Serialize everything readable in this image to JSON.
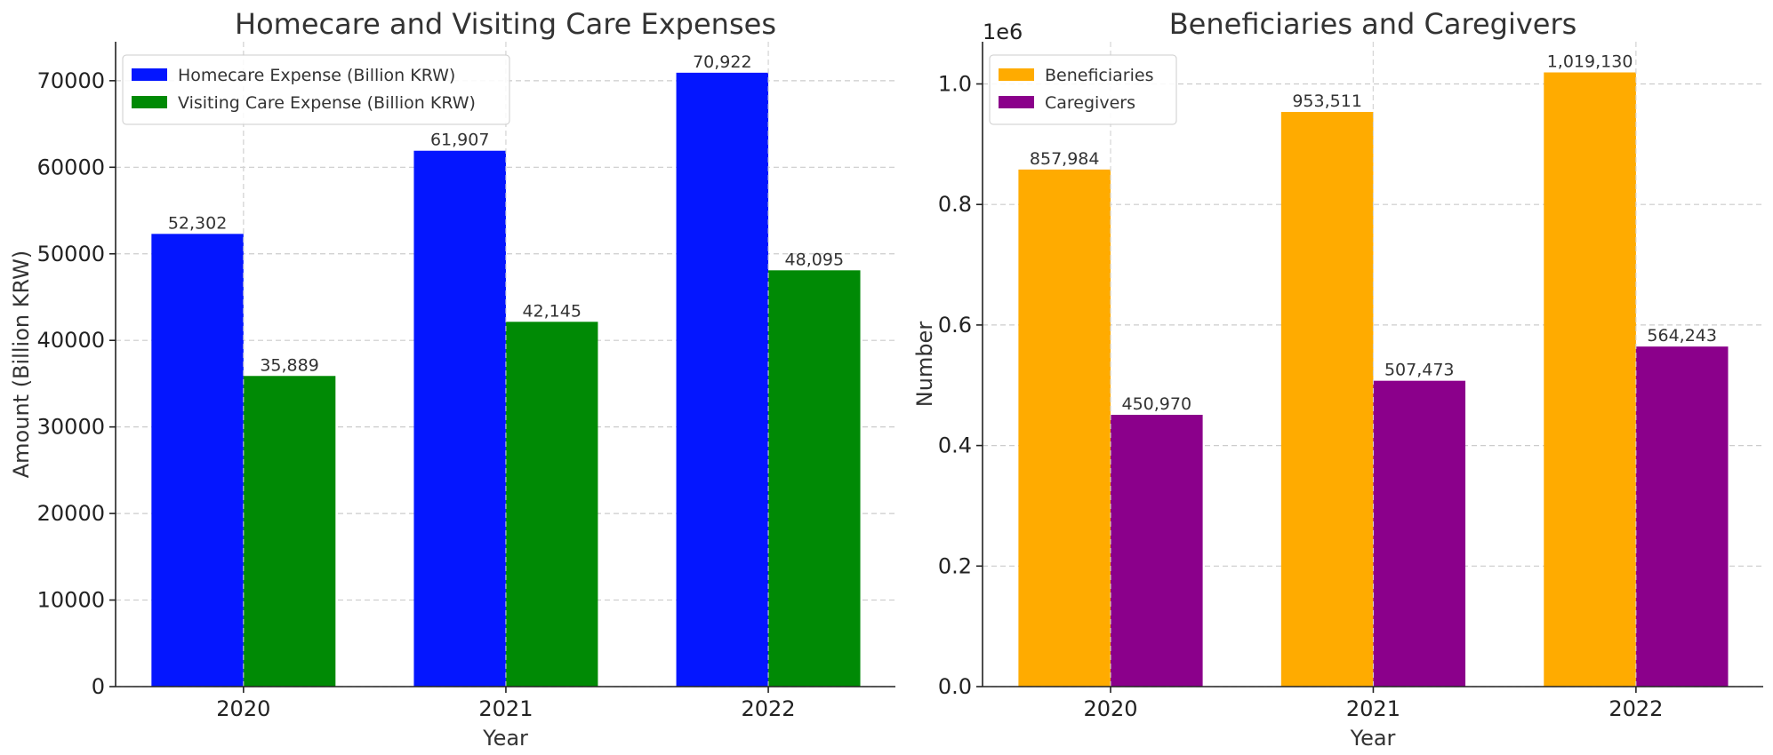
{
  "chart_data": [
    {
      "type": "bar",
      "title": "Homecare and Visiting Care Expenses",
      "xlabel": "Year",
      "ylabel": "Amount (Billion KRW)",
      "categories": [
        "2020",
        "2021",
        "2022"
      ],
      "series": [
        {
          "name": "Homecare Expense (Billion KRW)",
          "color": "#0416ff",
          "values": [
            52302,
            61907,
            70922
          ],
          "labels": [
            "52,302",
            "61,907",
            "70,922"
          ]
        },
        {
          "name": "Visiting Care Expense (Billion KRW)",
          "color": "#008a05",
          "values": [
            35889,
            42145,
            48095
          ],
          "labels": [
            "35,889",
            "42,145",
            "48,095"
          ]
        }
      ],
      "ylim": [
        0,
        74500
      ],
      "yticks": [
        0,
        10000,
        20000,
        30000,
        40000,
        50000,
        60000,
        70000
      ],
      "ytick_labels": [
        "0",
        "10000",
        "20000",
        "30000",
        "40000",
        "50000",
        "60000",
        "70000"
      ],
      "grid": true,
      "legend": "top-left"
    },
    {
      "type": "bar",
      "title": "Beneficiaries and Caregivers",
      "xlabel": "Year",
      "ylabel": "Number",
      "offset_text": "1e6",
      "categories": [
        "2020",
        "2021",
        "2022"
      ],
      "series": [
        {
          "name": "Beneficiaries",
          "color": "#ffab00",
          "values": [
            857984,
            953511,
            1019130
          ],
          "labels": [
            "857,984",
            "953,511",
            "1,019,130"
          ]
        },
        {
          "name": "Caregivers",
          "color": "#8b008b",
          "values": [
            450970,
            507473,
            564243
          ],
          "labels": [
            "450,970",
            "507,473",
            "564,243"
          ]
        }
      ],
      "ylim": [
        0,
        1070000
      ],
      "yticks": [
        0,
        200000,
        400000,
        600000,
        800000,
        1000000
      ],
      "ytick_labels": [
        "0.0",
        "0.2",
        "0.4",
        "0.6",
        "0.8",
        "1.0"
      ],
      "grid": true,
      "legend": "top-left"
    }
  ]
}
